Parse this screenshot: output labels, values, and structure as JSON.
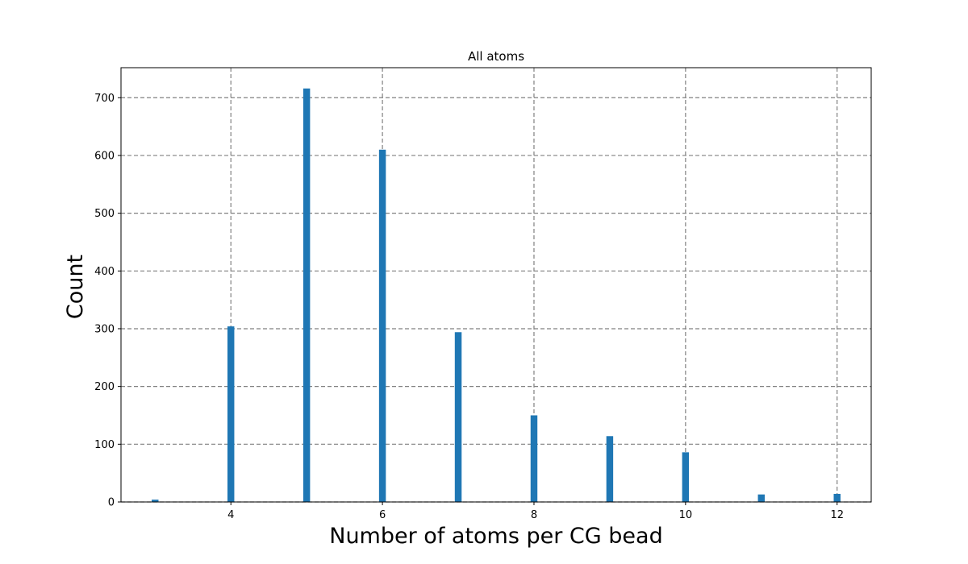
{
  "chart_data": {
    "type": "bar",
    "title": "All atoms",
    "xlabel": "Number of atoms per CG bead",
    "ylabel": "Count",
    "x": [
      3,
      4,
      5,
      6,
      7,
      8,
      9,
      10,
      11,
      12
    ],
    "values": [
      4,
      304,
      716,
      610,
      294,
      150,
      114,
      86,
      13,
      14
    ],
    "xlim": [
      2.55,
      12.45
    ],
    "ylim": [
      0,
      752
    ],
    "xticks": [
      4,
      6,
      8,
      10,
      12
    ],
    "yticks": [
      0,
      100,
      200,
      300,
      400,
      500,
      600,
      700
    ],
    "bar_width": 0.09,
    "grid": true,
    "colors": {
      "bar": "#1f77b4",
      "grid": "#808080"
    }
  }
}
